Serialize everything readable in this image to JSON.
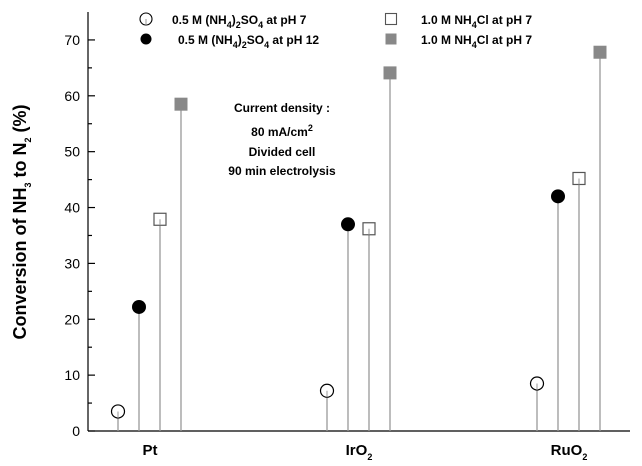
{
  "chart_data": {
    "type": "scatter",
    "ylim": [
      0,
      75
    ],
    "yticks": [
      0,
      10,
      20,
      30,
      40,
      50,
      60,
      70
    ],
    "ylabel": {
      "pre": "Conversion  of NH",
      "sub1": "3",
      "mid": "  to N",
      "sub2": "2",
      "post": " (%)"
    },
    "categories": [
      {
        "name": "Pt",
        "sub": ""
      },
      {
        "name": "IrO",
        "sub": "2"
      },
      {
        "name": "RuO",
        "sub": "2"
      }
    ],
    "series": [
      {
        "name": "0.5 M (NH4)2SO4 at pH 7",
        "marker": "open-circle",
        "values": [
          3.5,
          7.2,
          8.5
        ]
      },
      {
        "name": "0.5 M (NH4)2SO4 at pH 12",
        "marker": "filled-circle",
        "values": [
          22.2,
          37.0,
          42.0
        ]
      },
      {
        "name": "1.0 M NH4Cl at pH 7",
        "marker": "open-square",
        "values": [
          37.9,
          36.2,
          45.2
        ]
      },
      {
        "name": "1.0 M NH4Cl at pH 7",
        "marker": "filled-square",
        "values": [
          58.5,
          64.1,
          67.8
        ]
      }
    ],
    "legend": [
      {
        "text_pre": "0.5 M (NH",
        "s1": "4",
        "text_mid": ")",
        "s2": "2",
        "text_mid2": "SO",
        "s3": "4",
        "text_post": " at pH 7"
      },
      {
        "text_pre": "0.5 M (NH",
        "s1": "4",
        "text_mid": ")",
        "s2": "2",
        "text_mid2": "SO",
        "s3": "4",
        "text_post": " at pH 12"
      },
      {
        "text_pre": "1.0 M NH",
        "s1": "4",
        "text_mid": "Cl at pH 7",
        "s2": "",
        "text_mid2": "",
        "s3": "",
        "text_post": ""
      },
      {
        "text_pre": "1.0 M NH",
        "s1": "4",
        "text_mid": "Cl at pH 7",
        "s2": "",
        "text_mid2": "",
        "s3": "",
        "text_post": ""
      }
    ],
    "annotation": {
      "line1": "Current density :",
      "line2_pre": "80 mA/cm",
      "line2_sup": "2",
      "line3": "Divided cell",
      "line4": "90 min electrolysis"
    },
    "colors": {
      "open": "#ffffff",
      "filled_circle": "#000000",
      "filled_square": "#888888",
      "stem": "#999999",
      "outline": "#555555"
    }
  }
}
